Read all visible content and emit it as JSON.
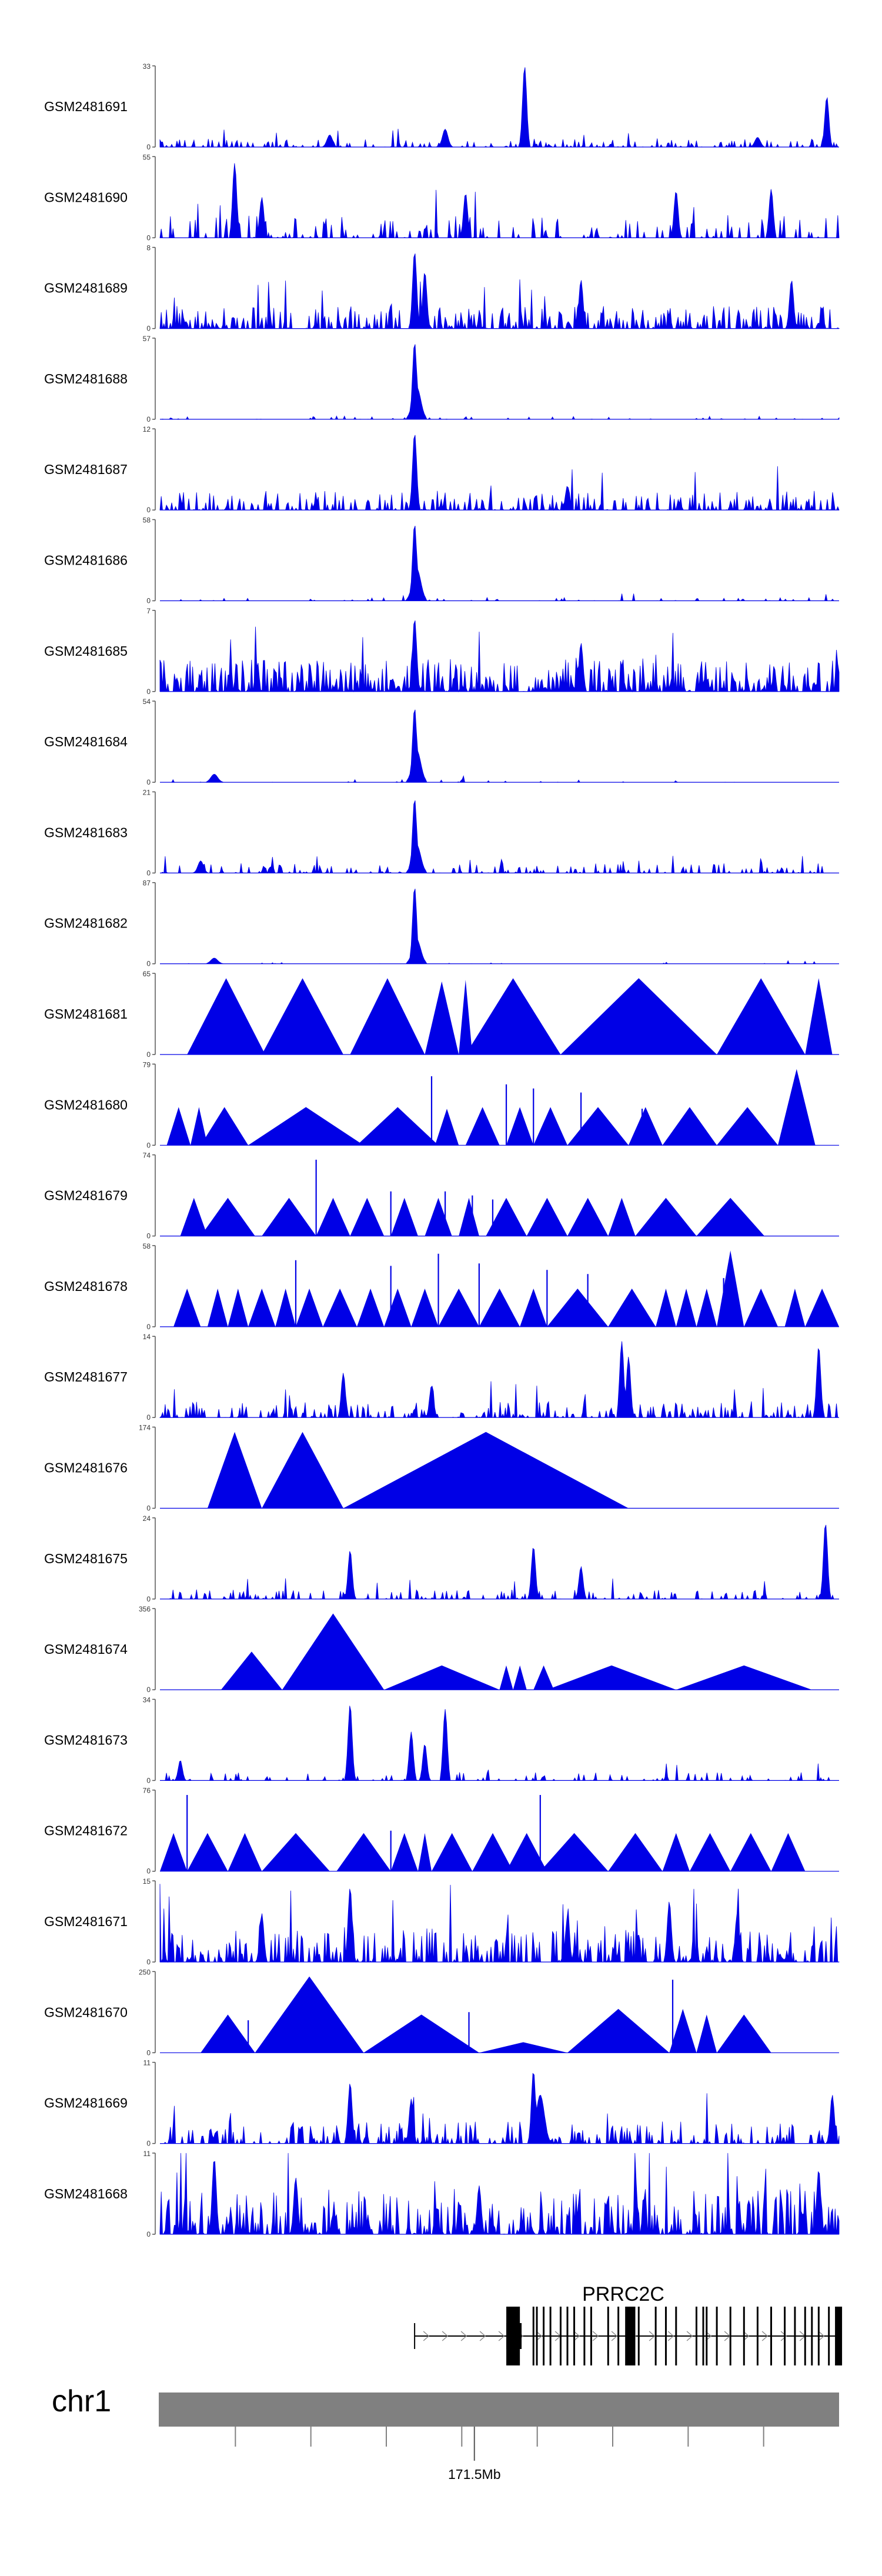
{
  "chart_data": {
    "type": "area",
    "title": "",
    "track_color": "#0000e6",
    "tracks": [
      {
        "name": "GSM2481691",
        "max": "33",
        "min": "0",
        "style": "noise",
        "density": 0.35,
        "base": 0.05,
        "peaks": [
          [
            0.537,
            1.0,
            0.003
          ],
          [
            0.982,
            0.62,
            0.003
          ],
          [
            0.42,
            0.22,
            0.004
          ],
          [
            0.25,
            0.15,
            0.004
          ],
          [
            0.88,
            0.12,
            0.004
          ]
        ]
      },
      {
        "name": "GSM2481690",
        "max": "55",
        "min": "0",
        "style": "noise",
        "density": 0.28,
        "base": 0.14,
        "peaks": [
          [
            0.11,
            0.92,
            0.003
          ],
          [
            0.15,
            0.5,
            0.003
          ],
          [
            0.45,
            0.55,
            0.003
          ],
          [
            0.76,
            0.58,
            0.003
          ],
          [
            0.9,
            0.6,
            0.003
          ]
        ]
      },
      {
        "name": "GSM2481689",
        "max": "8",
        "min": "0",
        "style": "noise",
        "density": 0.55,
        "base": 0.14,
        "peaks": [
          [
            0.375,
            0.95,
            0.003
          ],
          [
            0.39,
            0.7,
            0.003
          ],
          [
            0.62,
            0.6,
            0.003
          ],
          [
            0.93,
            0.6,
            0.003
          ]
        ]
      },
      {
        "name": "GSM2481688",
        "max": "57",
        "min": "0",
        "style": "noise",
        "density": 0.08,
        "base": 0.02,
        "peaks": [
          [
            0.375,
            0.95,
            0.003
          ],
          [
            0.378,
            0.4,
            0.006
          ]
        ]
      },
      {
        "name": "GSM2481687",
        "max": "12",
        "min": "0",
        "style": "noise",
        "density": 0.45,
        "base": 0.12,
        "peaks": [
          [
            0.375,
            0.95,
            0.003
          ],
          [
            0.6,
            0.3,
            0.003
          ]
        ]
      },
      {
        "name": "GSM2481686",
        "max": "58",
        "min": "0",
        "style": "noise",
        "density": 0.08,
        "base": 0.02,
        "peaks": [
          [
            0.375,
            0.95,
            0.003
          ],
          [
            0.378,
            0.4,
            0.006
          ]
        ]
      },
      {
        "name": "GSM2481685",
        "max": "7",
        "min": "0",
        "style": "noise",
        "density": 0.7,
        "base": 0.2,
        "peaks": [
          [
            0.375,
            0.9,
            0.003
          ],
          [
            0.62,
            0.6,
            0.003
          ]
        ]
      },
      {
        "name": "GSM2481684",
        "max": "54",
        "min": "0",
        "style": "noise",
        "density": 0.06,
        "base": 0.02,
        "peaks": [
          [
            0.375,
            0.92,
            0.003
          ],
          [
            0.378,
            0.4,
            0.006
          ],
          [
            0.08,
            0.1,
            0.005
          ]
        ]
      },
      {
        "name": "GSM2481683",
        "max": "21",
        "min": "0",
        "style": "noise",
        "density": 0.3,
        "base": 0.06,
        "peaks": [
          [
            0.375,
            0.92,
            0.003
          ],
          [
            0.378,
            0.35,
            0.006
          ],
          [
            0.06,
            0.15,
            0.004
          ]
        ]
      },
      {
        "name": "GSM2481682",
        "max": "87",
        "min": "0",
        "style": "noise",
        "density": 0.04,
        "base": 0.01,
        "peaks": [
          [
            0.375,
            0.95,
            0.003
          ],
          [
            0.378,
            0.3,
            0.006
          ],
          [
            0.08,
            0.07,
            0.005
          ]
        ]
      },
      {
        "name": "GSM2481681",
        "max": "65",
        "min": "0",
        "style": "tri",
        "tris": [
          [
            0.04,
            0.155,
            0.94
          ],
          [
            0.15,
            0.27,
            0.94
          ],
          [
            0.28,
            0.39,
            0.94
          ],
          [
            0.39,
            0.44,
            0.9
          ],
          [
            0.44,
            0.46,
            0.92
          ],
          [
            0.45,
            0.59,
            0.94
          ],
          [
            0.59,
            0.82,
            0.94
          ],
          [
            0.82,
            0.95,
            0.94
          ],
          [
            0.95,
            0.99,
            0.94
          ]
        ]
      },
      {
        "name": "GSM2481680",
        "max": "79",
        "min": "0",
        "style": "tri",
        "tris": [
          [
            0.01,
            0.045,
            0.47
          ],
          [
            0.045,
            0.07,
            0.47
          ],
          [
            0.06,
            0.13,
            0.47
          ],
          [
            0.13,
            0.3,
            0.47
          ],
          [
            0.29,
            0.41,
            0.47
          ],
          [
            0.405,
            0.44,
            0.45
          ],
          [
            0.45,
            0.5,
            0.47
          ],
          [
            0.51,
            0.55,
            0.47
          ],
          [
            0.55,
            0.6,
            0.47
          ],
          [
            0.6,
            0.69,
            0.47
          ],
          [
            0.69,
            0.74,
            0.47
          ],
          [
            0.74,
            0.82,
            0.47
          ],
          [
            0.82,
            0.91,
            0.47
          ],
          [
            0.91,
            0.965,
            0.94
          ]
        ],
        "spikes": [
          [
            0.4,
            0.85
          ],
          [
            0.51,
            0.75
          ],
          [
            0.55,
            0.7
          ],
          [
            0.62,
            0.65
          ],
          [
            0.71,
            0.45
          ],
          [
            0.78,
            0.4
          ]
        ]
      },
      {
        "name": "GSM2481679",
        "max": "74",
        "min": "0",
        "style": "tri",
        "tris": [
          [
            0.03,
            0.07,
            0.47
          ],
          [
            0.06,
            0.14,
            0.47
          ],
          [
            0.15,
            0.23,
            0.47
          ],
          [
            0.23,
            0.28,
            0.47
          ],
          [
            0.28,
            0.33,
            0.47
          ],
          [
            0.34,
            0.38,
            0.47
          ],
          [
            0.39,
            0.43,
            0.47
          ],
          [
            0.44,
            0.47,
            0.47
          ],
          [
            0.48,
            0.54,
            0.47
          ],
          [
            0.54,
            0.6,
            0.47
          ],
          [
            0.6,
            0.66,
            0.47
          ],
          [
            0.66,
            0.7,
            0.47
          ],
          [
            0.7,
            0.79,
            0.47
          ],
          [
            0.79,
            0.89,
            0.47
          ]
        ],
        "spikes": [
          [
            0.23,
            0.94
          ],
          [
            0.34,
            0.55
          ],
          [
            0.42,
            0.55
          ],
          [
            0.46,
            0.5
          ],
          [
            0.49,
            0.45
          ]
        ]
      },
      {
        "name": "GSM2481678",
        "max": "58",
        "min": "0",
        "style": "tri",
        "tris": [
          [
            0.02,
            0.06,
            0.47
          ],
          [
            0.07,
            0.1,
            0.47
          ],
          [
            0.1,
            0.13,
            0.47
          ],
          [
            0.13,
            0.17,
            0.47
          ],
          [
            0.17,
            0.2,
            0.47
          ],
          [
            0.2,
            0.24,
            0.47
          ],
          [
            0.24,
            0.29,
            0.47
          ],
          [
            0.29,
            0.33,
            0.47
          ],
          [
            0.33,
            0.37,
            0.47
          ],
          [
            0.37,
            0.41,
            0.47
          ],
          [
            0.41,
            0.47,
            0.47
          ],
          [
            0.47,
            0.53,
            0.47
          ],
          [
            0.53,
            0.57,
            0.47
          ],
          [
            0.57,
            0.66,
            0.47
          ],
          [
            0.66,
            0.73,
            0.47
          ],
          [
            0.73,
            0.76,
            0.47
          ],
          [
            0.76,
            0.79,
            0.47
          ],
          [
            0.79,
            0.82,
            0.47
          ],
          [
            0.82,
            0.86,
            0.94
          ],
          [
            0.86,
            0.91,
            0.47
          ],
          [
            0.92,
            0.95,
            0.47
          ],
          [
            0.95,
            1.0,
            0.47
          ]
        ],
        "spikes": [
          [
            0.2,
            0.82
          ],
          [
            0.34,
            0.75
          ],
          [
            0.41,
            0.9
          ],
          [
            0.47,
            0.78
          ],
          [
            0.57,
            0.7
          ],
          [
            0.63,
            0.65
          ],
          [
            0.83,
            0.6
          ]
        ]
      },
      {
        "name": "GSM2481677",
        "max": "14",
        "min": "0",
        "style": "noise",
        "density": 0.4,
        "base": 0.1,
        "peaks": [
          [
            0.68,
            0.94,
            0.003
          ],
          [
            0.97,
            0.88,
            0.003
          ],
          [
            0.69,
            0.75,
            0.003
          ],
          [
            0.27,
            0.55,
            0.003
          ],
          [
            0.4,
            0.4,
            0.003
          ]
        ]
      },
      {
        "name": "GSM2481676",
        "max": "174",
        "min": "0",
        "style": "tri",
        "tris": [
          [
            0.07,
            0.15,
            0.94
          ],
          [
            0.15,
            0.27,
            0.94
          ],
          [
            0.27,
            0.69,
            0.94
          ]
        ]
      },
      {
        "name": "GSM2481675",
        "max": "24",
        "min": "0",
        "style": "noise",
        "density": 0.3,
        "base": 0.06,
        "peaks": [
          [
            0.98,
            0.94,
            0.003
          ],
          [
            0.28,
            0.6,
            0.003
          ],
          [
            0.55,
            0.65,
            0.003
          ],
          [
            0.62,
            0.4,
            0.003
          ]
        ]
      },
      {
        "name": "GSM2481674",
        "max": "356",
        "min": "0",
        "style": "tri",
        "tris": [
          [
            0.09,
            0.18,
            0.47
          ],
          [
            0.18,
            0.33,
            0.94
          ],
          [
            0.33,
            0.5,
            0.3
          ],
          [
            0.5,
            0.52,
            0.3
          ],
          [
            0.52,
            0.54,
            0.3
          ],
          [
            0.55,
            0.58,
            0.3
          ],
          [
            0.57,
            0.76,
            0.3
          ],
          [
            0.76,
            0.96,
            0.3
          ]
        ]
      },
      {
        "name": "GSM2481673",
        "max": "34",
        "min": "0",
        "style": "noise",
        "density": 0.22,
        "base": 0.05,
        "peaks": [
          [
            0.28,
            0.94,
            0.003
          ],
          [
            0.42,
            0.88,
            0.003
          ],
          [
            0.37,
            0.6,
            0.003
          ],
          [
            0.39,
            0.45,
            0.003
          ],
          [
            0.03,
            0.25,
            0.003
          ]
        ]
      },
      {
        "name": "GSM2481672",
        "max": "76",
        "min": "0",
        "style": "tri",
        "tris": [
          [
            0.0,
            0.04,
            0.47
          ],
          [
            0.04,
            0.1,
            0.47
          ],
          [
            0.1,
            0.15,
            0.47
          ],
          [
            0.15,
            0.25,
            0.47
          ],
          [
            0.26,
            0.34,
            0.47
          ],
          [
            0.34,
            0.38,
            0.47
          ],
          [
            0.38,
            0.4,
            0.47
          ],
          [
            0.4,
            0.46,
            0.47
          ],
          [
            0.46,
            0.52,
            0.47
          ],
          [
            0.51,
            0.57,
            0.47
          ],
          [
            0.56,
            0.66,
            0.47
          ],
          [
            0.66,
            0.74,
            0.47
          ],
          [
            0.74,
            0.78,
            0.47
          ],
          [
            0.78,
            0.84,
            0.47
          ],
          [
            0.84,
            0.9,
            0.47
          ],
          [
            0.9,
            0.95,
            0.47
          ]
        ],
        "spikes": [
          [
            0.04,
            0.94
          ],
          [
            0.56,
            0.94
          ],
          [
            0.34,
            0.5
          ]
        ]
      },
      {
        "name": "GSM2481671",
        "max": "15",
        "min": "0",
        "style": "noise",
        "density": 0.5,
        "base": 0.22,
        "peaks": [
          [
            0.28,
            0.92,
            0.003
          ],
          [
            0.75,
            0.75,
            0.003
          ],
          [
            0.15,
            0.6,
            0.003
          ],
          [
            0.6,
            0.55,
            0.003
          ],
          [
            0.85,
            0.6,
            0.003
          ]
        ]
      },
      {
        "name": "GSM2481670",
        "max": "250",
        "min": "0",
        "style": "tri",
        "tris": [
          [
            0.06,
            0.14,
            0.47
          ],
          [
            0.14,
            0.3,
            0.94
          ],
          [
            0.3,
            0.47,
            0.47
          ],
          [
            0.47,
            0.6,
            0.13
          ],
          [
            0.6,
            0.75,
            0.54
          ],
          [
            0.75,
            0.79,
            0.54
          ],
          [
            0.79,
            0.82,
            0.47
          ],
          [
            0.82,
            0.9,
            0.47
          ]
        ],
        "spikes": [
          [
            0.13,
            0.4
          ],
          [
            0.455,
            0.5
          ],
          [
            0.755,
            0.9
          ]
        ]
      },
      {
        "name": "GSM2481669",
        "max": "11",
        "min": "0",
        "style": "noise",
        "density": 0.4,
        "base": 0.14,
        "peaks": [
          [
            0.55,
            0.9,
            0.003
          ],
          [
            0.56,
            0.6,
            0.006
          ],
          [
            0.28,
            0.75,
            0.003
          ],
          [
            0.37,
            0.55,
            0.003
          ],
          [
            0.99,
            0.6,
            0.003
          ]
        ]
      },
      {
        "name": "GSM2481668",
        "max": "11",
        "min": "0",
        "style": "noise",
        "density": 0.65,
        "base": 0.28,
        "peaks": [
          [
            0.08,
            0.94,
            0.003
          ],
          [
            0.2,
            0.7,
            0.003
          ],
          [
            0.47,
            0.6,
            0.003
          ],
          [
            0.97,
            0.8,
            0.003
          ]
        ]
      }
    ],
    "gene": {
      "name": "PRRC2C",
      "start_frac": 0.375,
      "end_frac": 1.0,
      "exons_frac": [
        0.515,
        0.525,
        0.55,
        0.555,
        0.565,
        0.575,
        0.59,
        0.6,
        0.61,
        0.625,
        0.635,
        0.66,
        0.675,
        0.69,
        0.705,
        0.73,
        0.745,
        0.76,
        0.79,
        0.8,
        0.805,
        0.82,
        0.84,
        0.86,
        0.88,
        0.9,
        0.92,
        0.935,
        0.95,
        0.96,
        0.97,
        0.985
      ],
      "thick_exons_frac": [
        [
          0.51,
          0.53
        ],
        [
          0.685,
          0.7
        ],
        [
          0.994,
          1.0
        ]
      ]
    },
    "chromosome": {
      "name": "chr1",
      "tick_label": "171.5Mb",
      "tick_label_frac": 0.463
    }
  }
}
